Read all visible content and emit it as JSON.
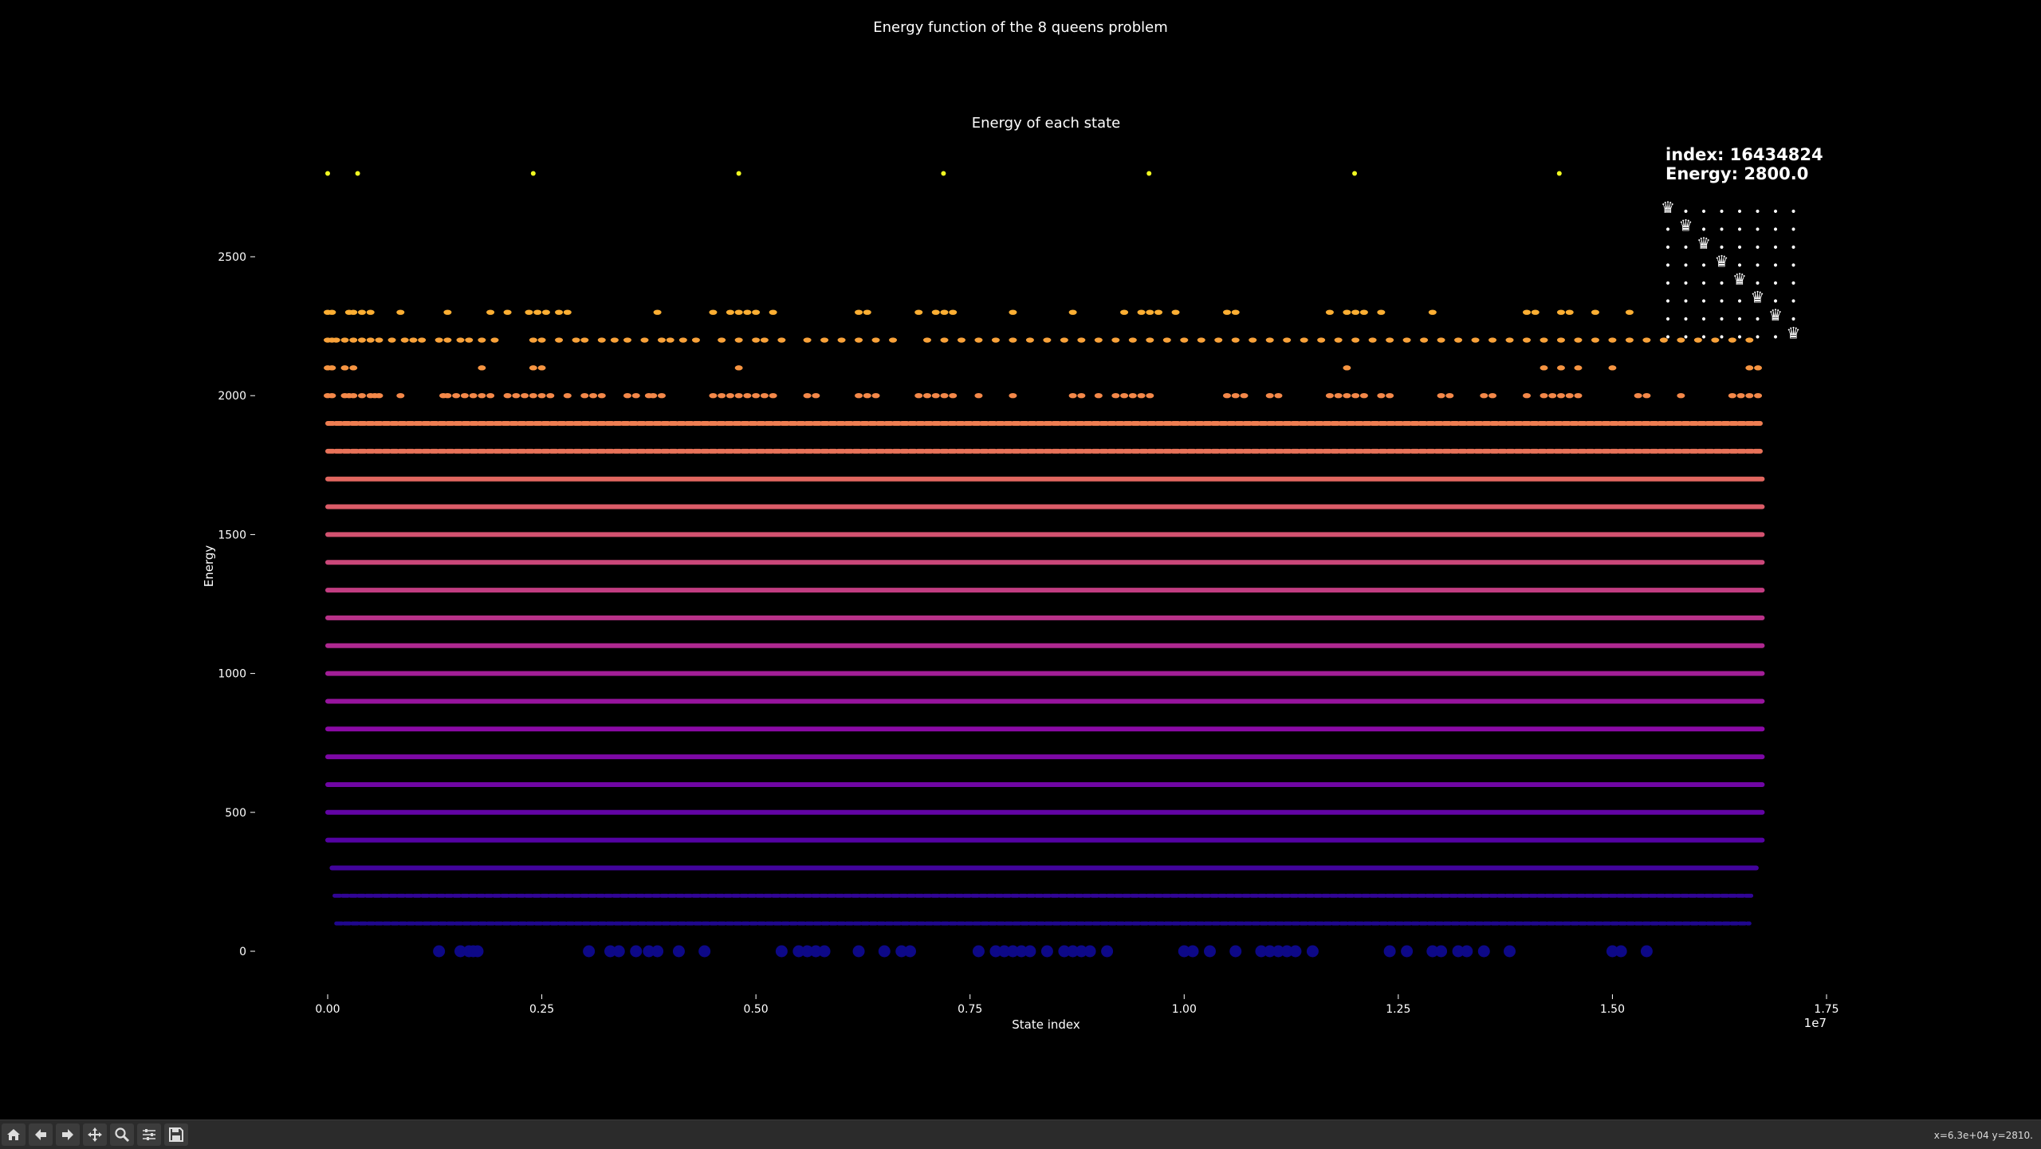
{
  "figure": {
    "title": "Energy function of the 8 queens problem"
  },
  "info": {
    "index_line": "index: 16434824",
    "energy_line": "Energy: 2800.0"
  },
  "board": {
    "queen_rows": [
      0,
      1,
      2,
      3,
      4,
      5,
      6,
      7
    ],
    "queen_cols": [
      0,
      1,
      2,
      3,
      4,
      5,
      6,
      7
    ],
    "queen_glyph": "♛",
    "empty_glyph": "•"
  },
  "status": {
    "coords": "x=6.3e+04 y=2810."
  },
  "toolbar": {
    "buttons": [
      {
        "name": "home-button",
        "icon": "home-icon"
      },
      {
        "name": "back-button",
        "icon": "arrow-left-icon"
      },
      {
        "name": "forward-button",
        "icon": "arrow-right-icon"
      },
      {
        "name": "pan-button",
        "icon": "move-icon"
      },
      {
        "name": "zoom-button",
        "icon": "magnifier-icon"
      },
      {
        "name": "configure-button",
        "icon": "sliders-icon"
      },
      {
        "name": "save-button",
        "icon": "floppy-disk-icon"
      }
    ]
  },
  "chart_data": {
    "type": "scatter",
    "title": "Energy of each state",
    "xlabel": "State index",
    "ylabel": "Energy",
    "x_offset_label": "1e7",
    "xlim": [
      -0.08,
      1.75
    ],
    "ylim": [
      -150,
      3000
    ],
    "xticks": [
      0.0,
      0.25,
      0.5,
      0.75,
      1.0,
      1.25,
      1.5,
      1.75
    ],
    "xtick_labels": [
      "0.00",
      "0.25",
      "0.50",
      "0.75",
      "1.00",
      "1.25",
      "1.50",
      "1.75"
    ],
    "yticks": [
      0,
      500,
      1000,
      1500,
      2000,
      2500
    ],
    "ytick_labels": [
      "0",
      "500",
      "1000",
      "1500",
      "2000",
      "2500"
    ],
    "colormap": "plasma",
    "grid": false,
    "energy_levels": [
      {
        "y": 0,
        "style": "sparse",
        "x": [
          0.13,
          0.155,
          0.165,
          0.17,
          0.175,
          0.305,
          0.33,
          0.34,
          0.36,
          0.375,
          0.385,
          0.41,
          0.44,
          0.53,
          0.55,
          0.56,
          0.57,
          0.58,
          0.62,
          0.65,
          0.67,
          0.68,
          0.76,
          0.78,
          0.79,
          0.8,
          0.81,
          0.82,
          0.84,
          0.86,
          0.87,
          0.88,
          0.89,
          0.91,
          1.0,
          1.01,
          1.03,
          1.06,
          1.09,
          1.1,
          1.11,
          1.12,
          1.13,
          1.15,
          1.24,
          1.26,
          1.29,
          1.3,
          1.32,
          1.33,
          1.35,
          1.38,
          1.5,
          1.51,
          1.54
        ]
      },
      {
        "y": 100,
        "style": "dashed",
        "x_range": [
          0.01,
          1.66
        ]
      },
      {
        "y": 200,
        "style": "dashed",
        "x_range": [
          0.008,
          1.664
        ]
      },
      {
        "y": 300,
        "style": "solid",
        "x_range": [
          0.005,
          1.668
        ]
      },
      {
        "y": 400,
        "style": "solid",
        "x_range": [
          0.0,
          1.675
        ]
      },
      {
        "y": 500,
        "style": "solid",
        "x_range": [
          0.0,
          1.675
        ]
      },
      {
        "y": 600,
        "style": "solid",
        "x_range": [
          0.0,
          1.675
        ]
      },
      {
        "y": 700,
        "style": "solid",
        "x_range": [
          0.0,
          1.675
        ]
      },
      {
        "y": 800,
        "style": "solid",
        "x_range": [
          0.0,
          1.675
        ]
      },
      {
        "y": 900,
        "style": "solid",
        "x_range": [
          0.0,
          1.675
        ]
      },
      {
        "y": 1000,
        "style": "solid",
        "x_range": [
          0.0,
          1.675
        ]
      },
      {
        "y": 1100,
        "style": "solid",
        "x_range": [
          0.0,
          1.675
        ]
      },
      {
        "y": 1200,
        "style": "solid",
        "x_range": [
          0.0,
          1.675
        ]
      },
      {
        "y": 1300,
        "style": "solid",
        "x_range": [
          0.0,
          1.675
        ]
      },
      {
        "y": 1400,
        "style": "solid",
        "x_range": [
          0.0,
          1.675
        ]
      },
      {
        "y": 1500,
        "style": "solid",
        "x_range": [
          0.0,
          1.675
        ]
      },
      {
        "y": 1600,
        "style": "solid",
        "x_range": [
          0.0,
          1.675
        ]
      },
      {
        "y": 1700,
        "style": "solid",
        "x_range": [
          0.0,
          1.675
        ]
      },
      {
        "y": 1800,
        "style": "dashed",
        "x_range": [
          0.0,
          1.675
        ]
      },
      {
        "y": 1900,
        "style": "dashed",
        "x_range": [
          0.0,
          1.675
        ]
      },
      {
        "y": 2000,
        "style": "clustered",
        "x": [
          0.0,
          0.005,
          0.02,
          0.025,
          0.03,
          0.04,
          0.05,
          0.055,
          0.06,
          0.085,
          0.135,
          0.14,
          0.15,
          0.16,
          0.17,
          0.18,
          0.19,
          0.21,
          0.22,
          0.23,
          0.24,
          0.25,
          0.26,
          0.28,
          0.3,
          0.31,
          0.32,
          0.35,
          0.36,
          0.375,
          0.38,
          0.39,
          0.45,
          0.46,
          0.47,
          0.48,
          0.49,
          0.5,
          0.51,
          0.52,
          0.56,
          0.57,
          0.62,
          0.63,
          0.64,
          0.69,
          0.7,
          0.71,
          0.72,
          0.73,
          0.76,
          0.8,
          0.87,
          0.88,
          0.9,
          0.92,
          0.93,
          0.94,
          0.95,
          0.96,
          1.05,
          1.06,
          1.07,
          1.1,
          1.11,
          1.17,
          1.18,
          1.19,
          1.2,
          1.21,
          1.23,
          1.24,
          1.3,
          1.31,
          1.35,
          1.36,
          1.4,
          1.42,
          1.43,
          1.44,
          1.45,
          1.46,
          1.53,
          1.54,
          1.58,
          1.64,
          1.65,
          1.66,
          1.67
        ]
      },
      {
        "y": 2100,
        "style": "sparse",
        "x": [
          0.0,
          0.005,
          0.02,
          0.03,
          0.18,
          0.24,
          0.25,
          0.48,
          1.19,
          1.42,
          1.44,
          1.46,
          1.5,
          1.66,
          1.67
        ]
      },
      {
        "y": 2200,
        "style": "clustered",
        "x": [
          0.0,
          0.005,
          0.01,
          0.02,
          0.03,
          0.04,
          0.05,
          0.06,
          0.075,
          0.09,
          0.1,
          0.11,
          0.13,
          0.14,
          0.155,
          0.165,
          0.18,
          0.195,
          0.24,
          0.25,
          0.27,
          0.29,
          0.3,
          0.32,
          0.335,
          0.35,
          0.37,
          0.39,
          0.4,
          0.415,
          0.43,
          0.46,
          0.48,
          0.5,
          0.51,
          0.53,
          0.56,
          0.58,
          0.6,
          0.62,
          0.64,
          0.66,
          0.7,
          0.72,
          0.74,
          0.76,
          0.78,
          0.8,
          0.82,
          0.84,
          0.86,
          0.88,
          0.9,
          0.92,
          0.94,
          0.96,
          0.98,
          1.0,
          1.02,
          1.04,
          1.06,
          1.08,
          1.1,
          1.12,
          1.14,
          1.16,
          1.18,
          1.2,
          1.22,
          1.24,
          1.26,
          1.28,
          1.3,
          1.32,
          1.34,
          1.36,
          1.38,
          1.4,
          1.42,
          1.44,
          1.46,
          1.48,
          1.5,
          1.52,
          1.54,
          1.56,
          1.58,
          1.6,
          1.62,
          1.64,
          1.66
        ]
      },
      {
        "y": 2300,
        "style": "sparse",
        "x": [
          0.0,
          0.005,
          0.025,
          0.03,
          0.04,
          0.05,
          0.085,
          0.14,
          0.19,
          0.21,
          0.235,
          0.245,
          0.255,
          0.27,
          0.28,
          0.385,
          0.45,
          0.47,
          0.48,
          0.49,
          0.5,
          0.52,
          0.62,
          0.63,
          0.69,
          0.71,
          0.72,
          0.73,
          0.8,
          0.87,
          0.93,
          0.95,
          0.96,
          0.97,
          0.99,
          1.05,
          1.06,
          1.17,
          1.19,
          1.2,
          1.21,
          1.23,
          1.29,
          1.4,
          1.41,
          1.44,
          1.45,
          1.48,
          1.52
        ]
      },
      {
        "y": 2800,
        "style": "sparse",
        "x": [
          0.0,
          0.035,
          0.24,
          0.48,
          0.719,
          0.959,
          1.199,
          1.438
        ]
      }
    ],
    "highlight": {
      "x": 1.6434824,
      "y": 2800.0
    }
  }
}
